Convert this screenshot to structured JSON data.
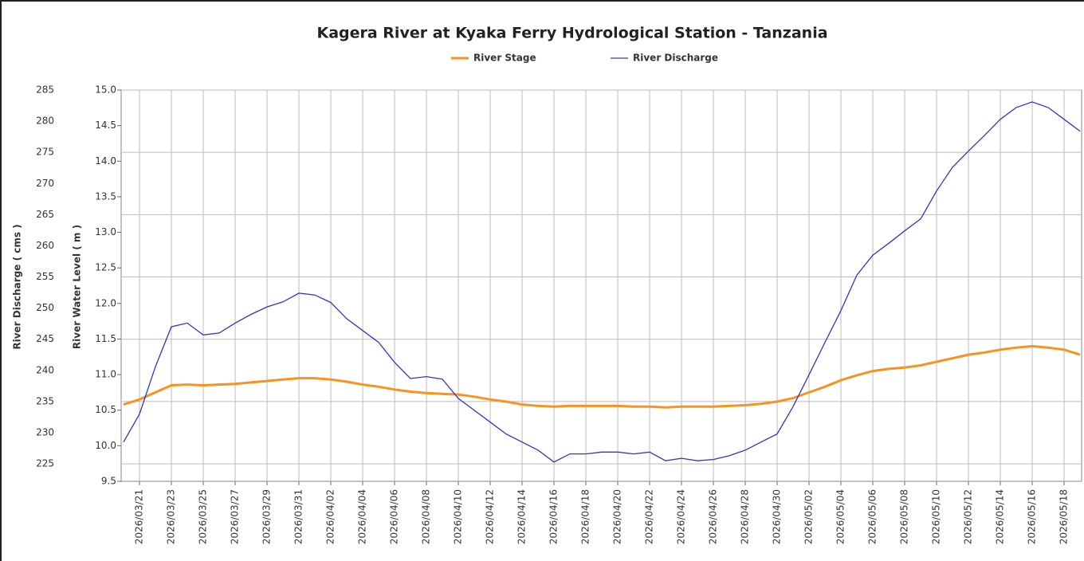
{
  "chart_data": {
    "type": "line",
    "title": "Kagera River at Kyaka Ferry Hydrological Station - Tanzania",
    "ylabel": "River Water Level ( m )",
    "y2label": "River Discharge ( cms )",
    "x": [
      "2026/03/20",
      "2026/03/21",
      "2026/03/22",
      "2026/03/23",
      "2026/03/24",
      "2026/03/25",
      "2026/03/26",
      "2026/03/27",
      "2026/03/28",
      "2026/03/29",
      "2026/03/30",
      "2026/03/31",
      "2026/04/01",
      "2026/04/02",
      "2026/04/03",
      "2026/04/04",
      "2026/04/05",
      "2026/04/06",
      "2026/04/07",
      "2026/04/08",
      "2026/04/09",
      "2026/04/10",
      "2026/04/11",
      "2026/04/12",
      "2026/04/13",
      "2026/04/14",
      "2026/04/15",
      "2026/04/16",
      "2026/04/17",
      "2026/04/18",
      "2026/04/19",
      "2026/04/20",
      "2026/04/21",
      "2026/04/22",
      "2026/04/23",
      "2026/04/24",
      "2026/04/25",
      "2026/04/26",
      "2026/04/27",
      "2026/04/28",
      "2026/04/29",
      "2026/04/30",
      "2026/05/01",
      "2026/05/02",
      "2026/05/03",
      "2026/05/04",
      "2026/05/05",
      "2026/05/06",
      "2026/05/07",
      "2026/05/08",
      "2026/05/09",
      "2026/05/10",
      "2026/05/11",
      "2026/05/12",
      "2026/05/13",
      "2026/05/14",
      "2026/05/15",
      "2026/05/16",
      "2026/05/17",
      "2026/05/18",
      "2026/05/19"
    ],
    "series": [
      {
        "name": "River Stage",
        "color": "#f7931e",
        "axis": "y",
        "values": [
          10.58,
          10.65,
          10.75,
          10.85,
          10.86,
          10.85,
          10.86,
          10.87,
          10.89,
          10.91,
          10.93,
          10.95,
          10.95,
          10.93,
          10.9,
          10.86,
          10.83,
          10.79,
          10.76,
          10.74,
          10.73,
          10.72,
          10.69,
          10.65,
          10.62,
          10.58,
          10.56,
          10.55,
          10.56,
          10.56,
          10.56,
          10.56,
          10.55,
          10.55,
          10.54,
          10.55,
          10.55,
          10.55,
          10.56,
          10.57,
          10.59,
          10.62,
          10.67,
          10.75,
          10.83,
          10.92,
          10.99,
          11.05,
          11.08,
          11.1,
          11.13,
          11.18,
          11.23,
          11.28,
          11.31,
          11.35,
          11.38,
          11.4,
          11.38,
          11.35,
          11.28
        ]
      },
      {
        "name": "River Discharge",
        "color": "#3333cc",
        "axis": "y2",
        "values": [
          228.5,
          233,
          240.6,
          247,
          247.6,
          245.7,
          246,
          247.6,
          249,
          250.2,
          251,
          252.4,
          252.1,
          250.9,
          248.3,
          246.4,
          244.5,
          241.3,
          238.7,
          239,
          238.6,
          235.5,
          233.6,
          231.7,
          229.8,
          228.5,
          227.2,
          225.3,
          226.6,
          226.6,
          226.9,
          226.9,
          226.6,
          226.9,
          225.5,
          225.9,
          225.5,
          225.7,
          226.3,
          227.2,
          228.5,
          229.8,
          234.2,
          239.3,
          244.5,
          249.6,
          255.3,
          258.5,
          260.4,
          262.4,
          264.3,
          268.8,
          272.6,
          275.2,
          277.7,
          280.3,
          282.2,
          283.1,
          282.2,
          280.3,
          278.4
        ]
      }
    ],
    "xlim": [
      "2026/03/20",
      "2026/05/19"
    ],
    "xticks": [
      "2026/03/21",
      "2026/03/23",
      "2026/03/25",
      "2026/03/27",
      "2026/03/29",
      "2026/03/31",
      "2026/04/02",
      "2026/04/04",
      "2026/04/06",
      "2026/04/08",
      "2026/04/10",
      "2026/04/12",
      "2026/04/14",
      "2026/04/16",
      "2026/04/18",
      "2026/04/20",
      "2026/04/22",
      "2026/04/24",
      "2026/04/26",
      "2026/04/28",
      "2026/04/30",
      "2026/05/02",
      "2026/05/04",
      "2026/05/06",
      "2026/05/08",
      "2026/05/10",
      "2026/05/12",
      "2026/05/14",
      "2026/05/16",
      "2026/05/18"
    ],
    "ylim": [
      9.5,
      15
    ],
    "yticks": [
      9.5,
      {
        "value": 10,
        "label": "10.0"
      },
      10.5,
      {
        "value": 11,
        "label": "11.0"
      },
      11.5,
      {
        "value": 12,
        "label": "12.0"
      },
      12.5,
      {
        "value": 13,
        "label": "13.0"
      },
      13.5,
      {
        "value": 14,
        "label": "14.0"
      },
      14.5,
      {
        "value": 15,
        "label": "15.0"
      }
    ],
    "y2lim": [
      222.2,
      285
    ],
    "y2ticks": [
      225,
      230,
      235,
      240,
      245,
      250,
      255,
      260,
      265,
      270,
      275,
      280,
      285
    ],
    "grid": true,
    "legend": "top"
  }
}
